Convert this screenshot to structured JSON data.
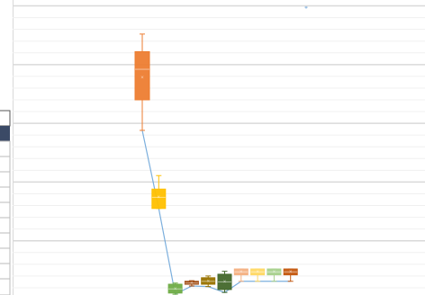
{
  "chart_data": {
    "type": "box",
    "categories": [
      null,
      null,
      null,
      null,
      null,
      null,
      null,
      null,
      null,
      null
    ],
    "ylim": [
      0,
      5.1
    ],
    "yticks": [
      0,
      1,
      2,
      3,
      4,
      5
    ],
    "grid": true,
    "minor_grid": true,
    "boxes": [
      {
        "color": "#ed7d31",
        "min": 2.88,
        "q1": 3.4,
        "median": 3.92,
        "q3": 4.22,
        "max": 4.52,
        "mean": 3.78
      },
      {
        "color": "#ffc000",
        "min": 1.55,
        "q1": 1.55,
        "median": 1.74,
        "q3": 1.88,
        "max": 2.11,
        "mean": 1.74
      },
      {
        "color": "#70ad47",
        "min": 0.09,
        "q1": 0.11,
        "median": 0.18,
        "q3": 0.26,
        "max": 0.28,
        "mean": 0.18
      },
      {
        "color": "#9e480e",
        "min": 0.23,
        "q1": 0.26,
        "median": 0.28,
        "q3": 0.31,
        "max": 0.32,
        "mean": 0.28
      },
      {
        "color": "#997300",
        "min": 0.22,
        "q1": 0.26,
        "median": 0.31,
        "q3": 0.37,
        "max": 0.4,
        "mean": 0.31
      },
      {
        "color": "#43682b",
        "min": 0.12,
        "q1": 0.17,
        "median": 0.3,
        "q3": 0.43,
        "max": 0.48,
        "mean": 0.3
      },
      {
        "color": "#f4b183",
        "min": 0.31,
        "q1": 0.42,
        "median": 0.47,
        "q3": 0.52,
        "max": 0.52,
        "mean": 0.47
      },
      {
        "color": "#ffd966",
        "min": 0.31,
        "q1": 0.42,
        "median": 0.47,
        "q3": 0.52,
        "max": 0.52,
        "mean": 0.47
      },
      {
        "color": "#a9d18e",
        "min": 0.31,
        "q1": 0.42,
        "median": 0.47,
        "q3": 0.52,
        "max": 0.52,
        "mean": 0.47
      },
      {
        "color": "#c55a11",
        "min": 0.31,
        "q1": 0.42,
        "median": 0.47,
        "q3": 0.52,
        "max": 0.52,
        "mean": 0.47
      }
    ]
  }
}
